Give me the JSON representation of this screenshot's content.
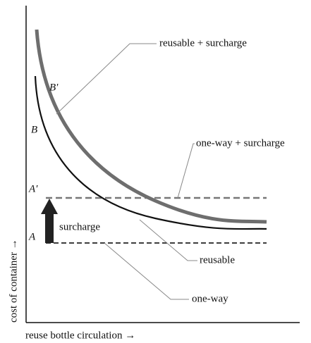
{
  "labels": {
    "reusable_surcharge": "reusable + surcharge",
    "oneway_surcharge": "one-way + surcharge",
    "reusable": "reusable",
    "oneway": "one-way",
    "surcharge": "surcharge",
    "b_prime": "B′",
    "b": "B",
    "a_prime": "A′",
    "a": "A"
  },
  "axes": {
    "y_label": "cost of container →",
    "x_label": "reuse bottle circulation →"
  }
}
